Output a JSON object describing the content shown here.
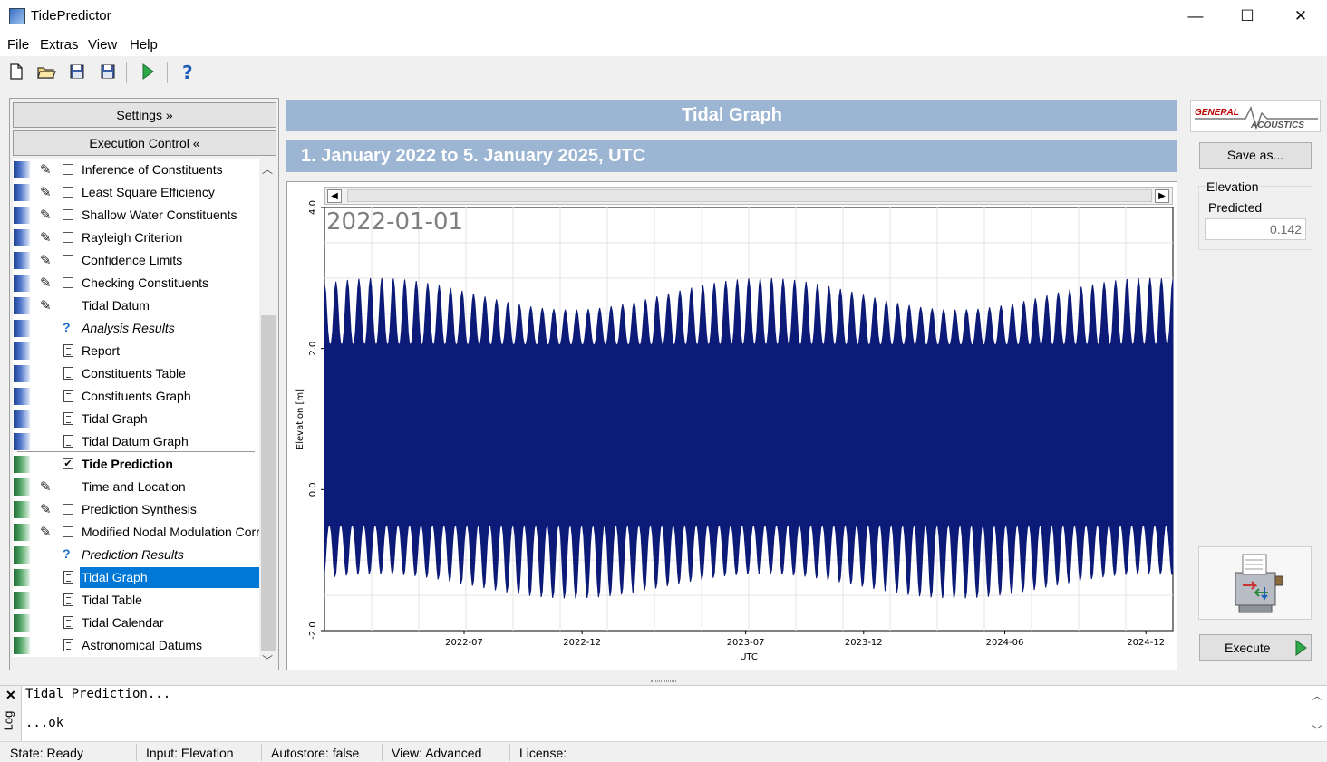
{
  "window": {
    "title": "TidePredictor",
    "minimize": "—",
    "maximize": "☐",
    "close": "✕"
  },
  "menu": {
    "file": "File",
    "extras": "Extras",
    "view": "View",
    "help": "Help"
  },
  "toolbar": {
    "icons": [
      "new-file-icon",
      "open-folder-icon",
      "save-icon",
      "save-as-icon",
      "run-icon",
      "help-icon"
    ]
  },
  "left_panel": {
    "settings_label": "Settings »",
    "execution_control_label": "Execution Control «",
    "tree": [
      {
        "label": "Inference of Constituents",
        "group": "blue",
        "pen": true,
        "checkbox": "unchecked"
      },
      {
        "label": "Least Square Efficiency",
        "group": "blue",
        "pen": true,
        "checkbox": "unchecked"
      },
      {
        "label": "Shallow Water Constituents",
        "group": "blue",
        "pen": true,
        "checkbox": "unchecked"
      },
      {
        "label": "Rayleigh Criterion",
        "group": "blue",
        "pen": true,
        "checkbox": "unchecked"
      },
      {
        "label": "Confidence Limits",
        "group": "blue",
        "pen": true,
        "checkbox": "unchecked"
      },
      {
        "label": "Checking Constituents",
        "group": "blue",
        "pen": true,
        "checkbox": "unchecked"
      },
      {
        "label": "Tidal Datum",
        "group": "blue",
        "pen": true
      },
      {
        "label": "Analysis Results",
        "group": "blue",
        "kind": "question",
        "style": "italic"
      },
      {
        "label": "Report",
        "group": "blue",
        "kind": "document"
      },
      {
        "label": "Constituents Table",
        "group": "blue",
        "kind": "document"
      },
      {
        "label": "Constituents Graph",
        "group": "blue",
        "kind": "document"
      },
      {
        "label": "Tidal Graph",
        "group": "blue",
        "kind": "document"
      },
      {
        "label": "Tidal Datum Graph",
        "group": "blue",
        "kind": "document"
      },
      {
        "label": "Tide Prediction",
        "group": "green",
        "checkbox": "checked",
        "style": "bold"
      },
      {
        "label": "Time and Location",
        "group": "green",
        "pen": true
      },
      {
        "label": "Prediction Synthesis",
        "group": "green",
        "pen": true,
        "checkbox": "unchecked"
      },
      {
        "label": "Modified Nodal Modulation Corre",
        "group": "green",
        "pen": true,
        "checkbox": "unchecked"
      },
      {
        "label": "Prediction Results",
        "group": "green",
        "kind": "question",
        "style": "italic"
      },
      {
        "label": "Tidal Graph",
        "group": "green",
        "kind": "document",
        "selected": true
      },
      {
        "label": "Tidal Table",
        "group": "green",
        "kind": "document"
      },
      {
        "label": "Tidal Calendar",
        "group": "green",
        "kind": "document"
      },
      {
        "label": "Astronomical Datums",
        "group": "green",
        "kind": "document"
      }
    ]
  },
  "center": {
    "title": "Tidal Graph",
    "date_range": "1. January 2022 to 5. January 2025, UTC"
  },
  "chart_data": {
    "type": "area",
    "title": "",
    "overlay_label": "2022-01-01",
    "xlabel": "UTC",
    "ylabel": "Elevation [m]",
    "xlim": [
      "2022-01-01",
      "2025-01-05"
    ],
    "ylim": [
      -2.0,
      4.0
    ],
    "x_ticks": [
      "2022-07",
      "2022-12",
      "2023-07",
      "2023-12",
      "2024-06",
      "2024-12"
    ],
    "y_ticks": [
      "-2.0",
      "0.0",
      "2.0",
      "4.0"
    ],
    "grid": true,
    "series": [
      {
        "color": "#0c1a78",
        "envelope_peak_spacing_days": 14.8,
        "upper_envelope_range": [
          2.55,
          3.0
        ],
        "upper_envelope_trough": 2.05,
        "lower_envelope_range": [
          -1.55,
          -1.2
        ],
        "lower_envelope_crest": -0.5
      }
    ]
  },
  "right_panel": {
    "logo_line1": "GENERAL",
    "logo_line2": "ACOUSTICS",
    "save_label": "Save as...",
    "elevation_label": "Elevation",
    "predicted_label": "Predicted",
    "predicted_value": "0.142",
    "execute_label": "Execute"
  },
  "log": {
    "tab": "Log",
    "close": "✕",
    "lines": [
      "Tidal Prediction...",
      "...ok"
    ]
  },
  "status": {
    "state": "State: Ready",
    "input": "Input: Elevation",
    "autostore": "Autostore: false",
    "view": "View: Advanced",
    "license": "License:"
  }
}
